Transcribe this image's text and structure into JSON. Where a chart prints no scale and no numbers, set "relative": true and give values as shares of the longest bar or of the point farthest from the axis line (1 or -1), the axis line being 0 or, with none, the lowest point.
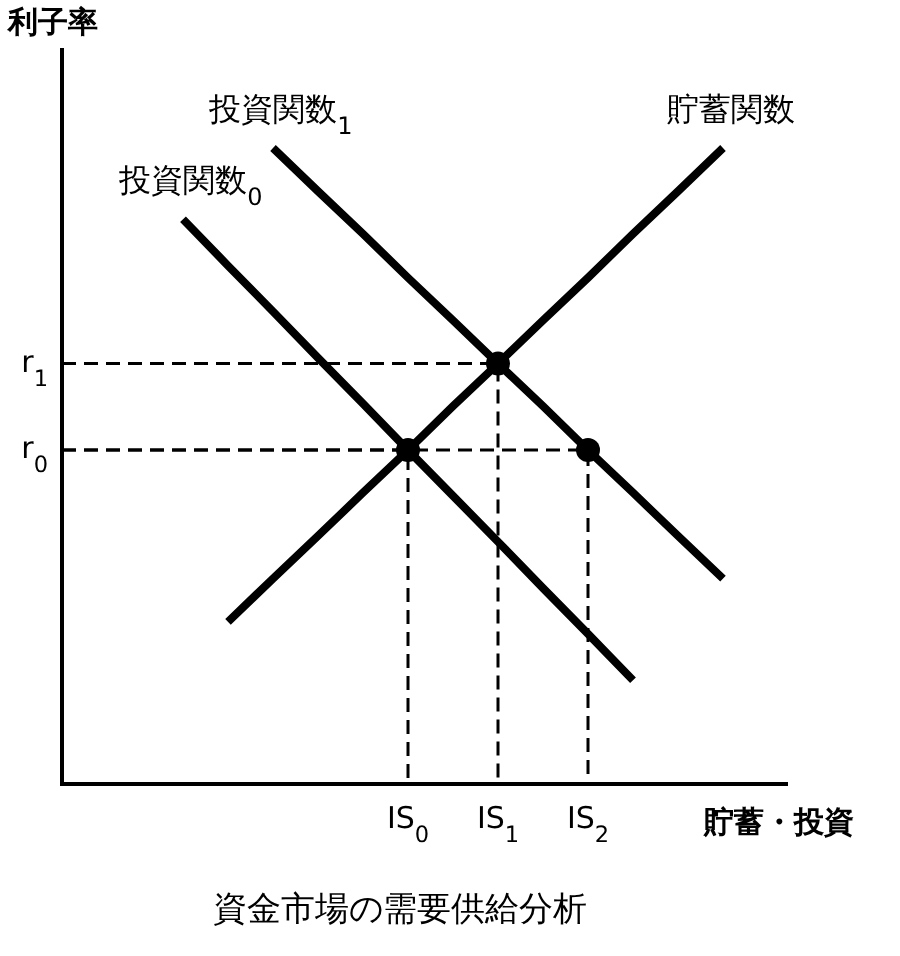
{
  "chart_data": {
    "type": "line",
    "title": "資金市場の需要供給分析",
    "xlabel": "貯蓄・投資",
    "ylabel": "利子率",
    "relative": true,
    "legend": false,
    "categories": [
      null,
      null,
      null,
      null,
      null,
      null,
      "IS$_{0}$",
      null,
      "IS$_{1}$",
      null,
      "IS$_{2}$",
      null,
      null,
      null,
      null
    ],
    "annotations": [
      "r$_{0}$",
      "r$_{1}$"
    ],
    "series": [
      {
        "name": "貯蓄関数",
        "color": "#000000",
        "values": [
          null,
          null,
          0.255,
          0.323,
          0.39,
          0.458,
          0.525,
          0.594,
          0.661,
          0.729,
          0.796,
          0.865,
          0.932,
          1,
          null
        ]
      },
      {
        "name": "投資関数$_{0}$",
        "color": "#000000",
        "values": [
          null,
          0.888,
          0.815,
          0.743,
          0.67,
          0.598,
          0.525,
          0.453,
          0.381,
          0.308,
          0.236,
          0.163,
          null,
          null,
          null
        ]
      },
      {
        "name": "投資関数$_{1}$",
        "color": "#000000",
        "values": [
          null,
          null,
          null,
          1,
          0.932,
          0.865,
          0.796,
          0.729,
          0.661,
          0.594,
          0.525,
          0.458,
          0.39,
          0.323,
          null
        ]
      },
      {
        "type": "scatter",
        "marker": "circle",
        "line_style": "dashed",
        "color": "#000000",
        "values": [
          null,
          null,
          null,
          null,
          null,
          null,
          0.525,
          null,
          0.661,
          null,
          0.525,
          null,
          null,
          null,
          null
        ]
      }
    ]
  }
}
